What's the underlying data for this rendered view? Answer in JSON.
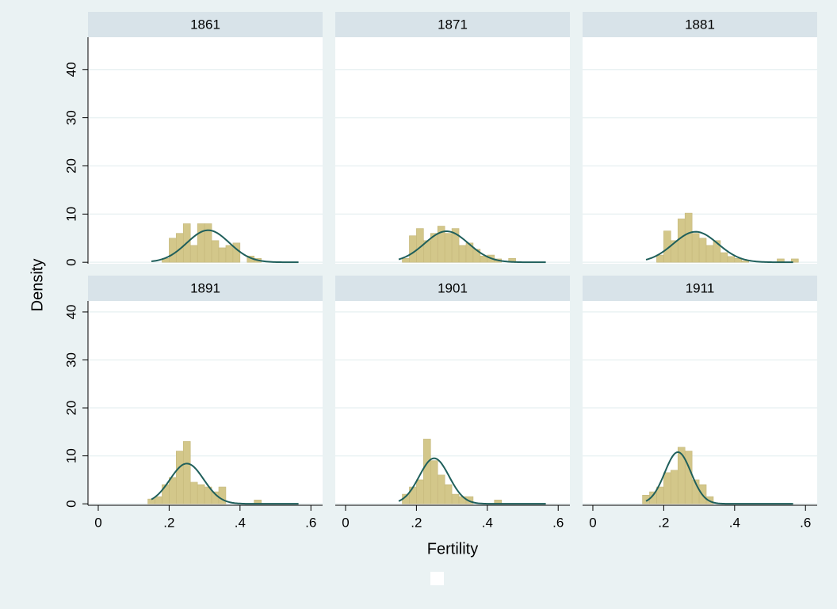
{
  "chart_data": [
    {
      "type": "histogram",
      "title": "1861",
      "bins": [
        0.14,
        0.16,
        0.18,
        0.2,
        0.22,
        0.24,
        0.26,
        0.28,
        0.3,
        0.32,
        0.34,
        0.36,
        0.38,
        0.4,
        0.42,
        0.44,
        0.46,
        0.48,
        0.5,
        0.52,
        0.54,
        0.56,
        0.58
      ],
      "values": [
        0,
        0,
        0.8,
        5,
        6,
        8,
        3.5,
        8,
        8,
        4.5,
        3,
        3.5,
        4,
        0,
        1.3,
        0.8,
        0,
        0,
        0,
        0,
        0,
        0
      ],
      "color": "#d3c78a",
      "density_curve": {
        "mean": 0.31,
        "sd": 0.06,
        "x_range": [
          0.15,
          0.565
        ],
        "color": "#1f5f5b"
      },
      "xlim": [
        -0.029,
        0.633
      ],
      "ylim": [
        -0.3,
        46.7
      ],
      "yticks": [
        0,
        10,
        20,
        30,
        40
      ],
      "grid": true
    },
    {
      "type": "histogram",
      "title": "1871",
      "bins": [
        0.14,
        0.16,
        0.18,
        0.2,
        0.22,
        0.24,
        0.26,
        0.28,
        0.3,
        0.32,
        0.34,
        0.36,
        0.38,
        0.4,
        0.42,
        0.44,
        0.46,
        0.48,
        0.5,
        0.52,
        0.54,
        0.56,
        0.58
      ],
      "values": [
        0,
        0.8,
        5.5,
        7,
        4.5,
        6,
        7.5,
        6,
        7,
        3.5,
        4,
        2.7,
        1.3,
        1.5,
        0.7,
        0,
        0.8,
        0,
        0,
        0,
        0,
        0
      ],
      "color": "#d3c78a",
      "density_curve": {
        "mean": 0.285,
        "sd": 0.062,
        "x_range": [
          0.15,
          0.565
        ],
        "color": "#1f5f5b"
      },
      "xlim": [
        -0.029,
        0.633
      ],
      "ylim": [
        -0.3,
        46.7
      ],
      "yticks": [
        0,
        10,
        20,
        30,
        40
      ],
      "grid": true
    },
    {
      "type": "histogram",
      "title": "1881",
      "bins": [
        0.14,
        0.16,
        0.18,
        0.2,
        0.22,
        0.24,
        0.26,
        0.28,
        0.3,
        0.32,
        0.34,
        0.36,
        0.38,
        0.4,
        0.42,
        0.44,
        0.46,
        0.48,
        0.5,
        0.52,
        0.54,
        0.56,
        0.58
      ],
      "values": [
        0,
        0,
        1.5,
        6.5,
        4.5,
        9,
        10.2,
        6,
        5,
        3.5,
        4.5,
        2,
        1.2,
        0.8,
        0.3,
        0,
        0,
        0,
        0,
        0.7,
        0,
        0.7
      ],
      "color": "#d3c78a",
      "density_curve": {
        "mean": 0.29,
        "sd": 0.063,
        "x_range": [
          0.15,
          0.565
        ],
        "color": "#1f5f5b"
      },
      "xlim": [
        -0.029,
        0.633
      ],
      "ylim": [
        -0.3,
        46.7
      ],
      "yticks": [
        0,
        10,
        20,
        30,
        40
      ],
      "grid": true
    },
    {
      "type": "histogram",
      "title": "1891",
      "bins": [
        0.14,
        0.16,
        0.18,
        0.2,
        0.22,
        0.24,
        0.26,
        0.28,
        0.3,
        0.32,
        0.34,
        0.36,
        0.38,
        0.4,
        0.42,
        0.44,
        0.46,
        0.48,
        0.5,
        0.52,
        0.54,
        0.56,
        0.58
      ],
      "values": [
        1,
        1.5,
        4,
        5.5,
        11,
        13,
        4.5,
        4,
        3.5,
        2.5,
        3.5,
        0,
        0,
        0,
        0,
        0.8,
        0,
        0,
        0,
        0,
        0,
        0
      ],
      "color": "#d3c78a",
      "density_curve": {
        "mean": 0.25,
        "sd": 0.0475,
        "x_range": [
          0.15,
          0.565
        ],
        "color": "#1f5f5b"
      },
      "xlim": [
        -0.029,
        0.633
      ],
      "ylim": [
        -0.3,
        42.3
      ],
      "yticks": [
        0,
        10,
        20,
        30,
        40
      ],
      "xticks": [
        0,
        {
          "value": 0.2,
          "label": ".2"
        },
        {
          "value": 0.4,
          "label": ".4"
        },
        {
          "value": 0.6,
          "label": ".6"
        }
      ],
      "grid": true
    },
    {
      "type": "histogram",
      "title": "1901",
      "bins": [
        0.14,
        0.16,
        0.18,
        0.2,
        0.22,
        0.24,
        0.26,
        0.28,
        0.3,
        0.32,
        0.34,
        0.36,
        0.38,
        0.4,
        0.42,
        0.44,
        0.46,
        0.48,
        0.5,
        0.52,
        0.54,
        0.56,
        0.58
      ],
      "values": [
        0,
        2,
        3.5,
        5,
        13.5,
        9,
        6,
        4,
        2,
        1.5,
        1.5,
        0,
        0,
        0,
        0.8,
        0,
        0,
        0,
        0,
        0,
        0,
        0
      ],
      "color": "#d3c78a",
      "density_curve": {
        "mean": 0.25,
        "sd": 0.042,
        "x_range": [
          0.15,
          0.565
        ],
        "color": "#1f5f5b"
      },
      "xlim": [
        -0.029,
        0.633
      ],
      "ylim": [
        -0.3,
        42.3
      ],
      "yticks": [
        0,
        10,
        20,
        30,
        40
      ],
      "xticks": [
        0,
        {
          "value": 0.2,
          "label": ".2"
        },
        {
          "value": 0.4,
          "label": ".4"
        },
        {
          "value": 0.6,
          "label": ".6"
        }
      ],
      "grid": true
    },
    {
      "type": "histogram",
      "title": "1911",
      "bins": [
        0.14,
        0.16,
        0.18,
        0.2,
        0.22,
        0.24,
        0.26,
        0.28,
        0.3,
        0.32,
        0.34,
        0.36,
        0.38,
        0.4,
        0.42,
        0.44,
        0.46,
        0.48,
        0.5,
        0.52,
        0.54,
        0.56,
        0.58
      ],
      "values": [
        1.8,
        2.5,
        3.5,
        6.5,
        7,
        11.8,
        11,
        5,
        4,
        1.5,
        0,
        0,
        0,
        0,
        0,
        0,
        0,
        0,
        0,
        0,
        0,
        0
      ],
      "color": "#d3c78a",
      "density_curve": {
        "mean": 0.24,
        "sd": 0.037,
        "x_range": [
          0.15,
          0.565
        ],
        "color": "#1f5f5b"
      },
      "xlim": [
        -0.029,
        0.633
      ],
      "ylim": [
        -0.3,
        42.3
      ],
      "yticks": [
        0,
        10,
        20,
        30,
        40
      ],
      "xticks": [
        0,
        {
          "value": 0.2,
          "label": ".2"
        },
        {
          "value": 0.4,
          "label": ".4"
        },
        {
          "value": 0.6,
          "label": ".6"
        }
      ],
      "grid": true
    }
  ],
  "shared": {
    "xlabel": "Fertility",
    "ylabel": "Density"
  }
}
